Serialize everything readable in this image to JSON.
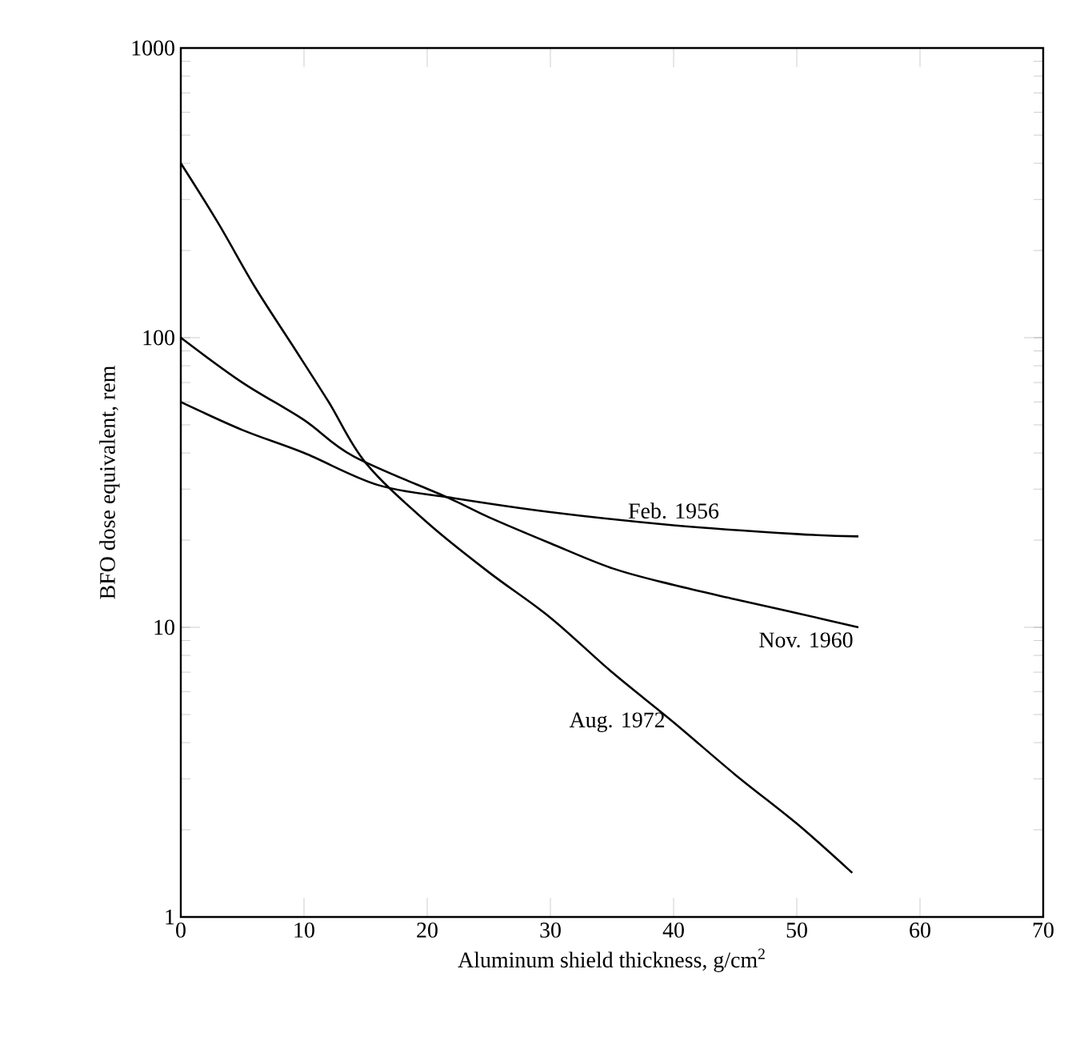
{
  "chart_data": {
    "type": "line",
    "xlabel": "Aluminum shield thickness, g/cm$^{2}$",
    "ylabel": "BFO dose equivalent, rem",
    "log": "y",
    "xlim": [
      0,
      70
    ],
    "ylim": [
      1,
      1000
    ],
    "xticks": [
      0,
      10,
      20,
      30,
      40,
      50,
      60,
      70
    ],
    "yticks": [
      1,
      10,
      100,
      1000
    ],
    "marker": "none",
    "line_style": "solid",
    "legend": false,
    "series": [
      {
        "name": "Feb. 1956",
        "color": "#000000",
        "x": [
          0,
          5,
          10,
          16,
          22,
          30,
          40,
          50,
          55
        ],
        "values": [
          60,
          48,
          40,
          31,
          28,
          25,
          22.5,
          21,
          20.6
        ]
      },
      {
        "name": "Nov. 1960",
        "color": "#000000",
        "x": [
          0,
          5,
          10,
          14,
          21.7,
          25,
          30,
          35,
          40,
          45,
          50,
          55
        ],
        "values": [
          100,
          70,
          52,
          39,
          28,
          24,
          19.5,
          16,
          14,
          12.5,
          11.2,
          10
        ]
      },
      {
        "name": "Aug. 1972",
        "color": "#000000",
        "x": [
          0,
          3,
          6,
          9,
          12,
          15,
          20,
          25,
          30,
          35,
          40,
          45,
          50,
          54.5
        ],
        "values": [
          400,
          250,
          150,
          95,
          60,
          37,
          23,
          15.5,
          10.8,
          7,
          4.7,
          3.1,
          2.1,
          1.42
        ]
      }
    ]
  }
}
